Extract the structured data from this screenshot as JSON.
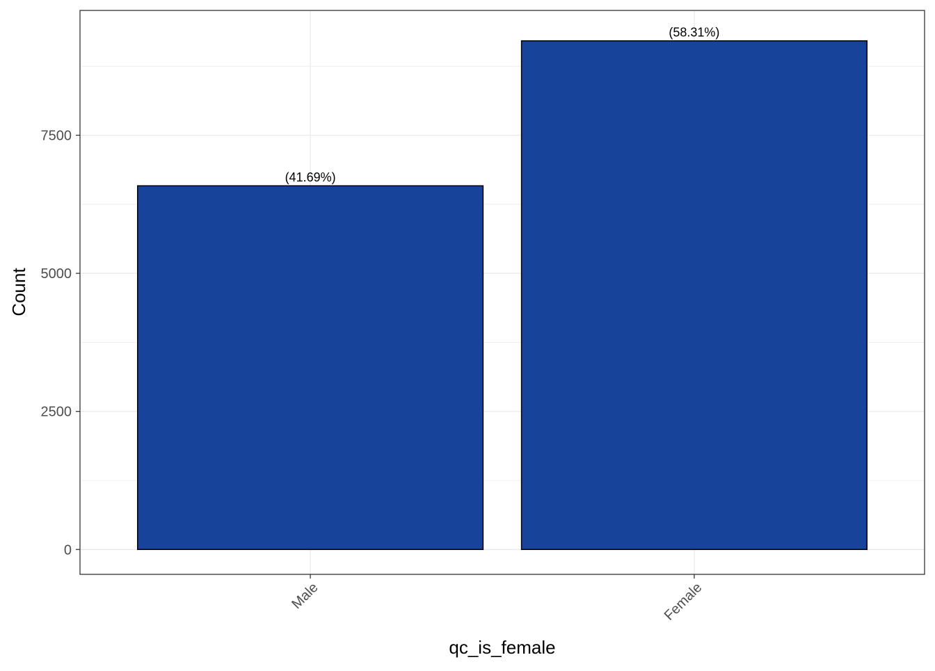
{
  "chart_data": {
    "type": "bar",
    "categories": [
      "Male",
      "Female"
    ],
    "values": [
      6585,
      9210
    ],
    "labels": [
      "(41.69%)",
      "(58.31%)"
    ],
    "xlabel": "qc_is_female",
    "ylabel": "Count",
    "ylim": [
      -450,
      9760
    ],
    "yticks": [
      0,
      2500,
      5000,
      7500
    ],
    "ytick_labels": [
      "0",
      "2500",
      "5000",
      "7500"
    ],
    "grid": true,
    "legend": "none",
    "bar_fill": "#18439A",
    "bar_stroke": "#000000",
    "grid_color": "#EBEBEB",
    "panel_border": "#333333"
  }
}
